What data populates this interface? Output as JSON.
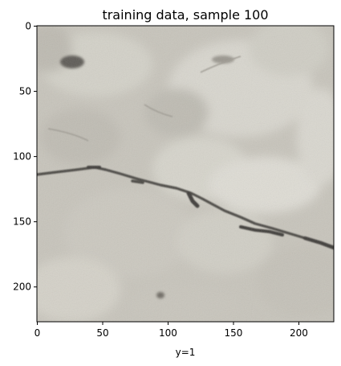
{
  "figure": {
    "title": "training data, sample 100",
    "xlabel": "y=1",
    "xlim": [
      0,
      227
    ],
    "ylim": [
      227,
      0
    ],
    "x_ticks": [
      "0",
      "50",
      "100",
      "150",
      "200"
    ],
    "y_ticks": [
      "0",
      "50",
      "100",
      "150",
      "200"
    ],
    "x_tick_values": [
      0,
      50,
      100,
      150,
      200
    ],
    "y_tick_values": [
      0,
      50,
      100,
      150,
      200
    ],
    "image_subject": "crack-in-concrete",
    "colors": {
      "background": "#ffffff",
      "concrete_base": "#c7c4bb",
      "concrete_light": "#dcdad2",
      "crack_dark": "#3e3b38",
      "axis": "#000000"
    }
  }
}
